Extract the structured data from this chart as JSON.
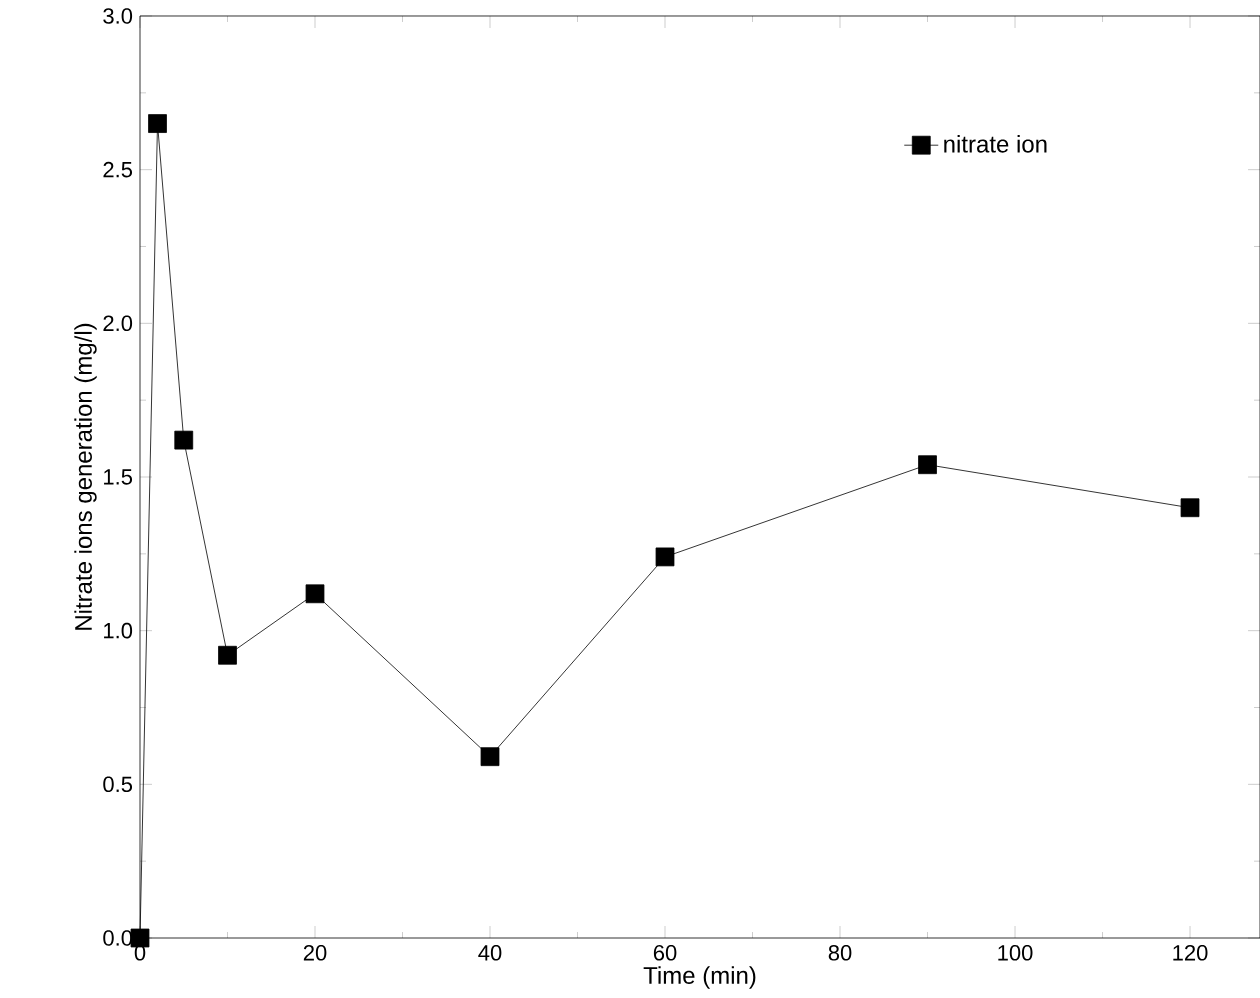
{
  "chart_data": {
    "type": "line",
    "xlabel": "Time (min)",
    "ylabel": "Nitrate ions generation (mg/l)",
    "x": [
      0,
      2,
      5,
      10,
      20,
      40,
      60,
      90,
      120
    ],
    "series": [
      {
        "name": "nitrate ion",
        "color": "#000000",
        "values": [
          0,
          2.65,
          1.62,
          0.92,
          1.12,
          0.59,
          1.24,
          1.54,
          1.4
        ]
      }
    ],
    "xlim": [
      0,
      128
    ],
    "ylim": [
      0,
      3.0
    ],
    "xticks": [
      0,
      20,
      40,
      60,
      80,
      100,
      120
    ],
    "yticks": [
      {
        "value": 0,
        "label": "0.0"
      },
      {
        "value": 0.5,
        "label": "0.5"
      },
      {
        "value": 1.0,
        "label": "1.0"
      },
      {
        "value": 1.5,
        "label": "1.5"
      },
      {
        "value": 2.0,
        "label": "2.0"
      },
      {
        "value": 2.5,
        "label": "2.5"
      },
      {
        "value": 3.0,
        "label": "3.0"
      }
    ],
    "legend": "top right",
    "marker": "square",
    "line_style": "solid",
    "grid": false
  }
}
